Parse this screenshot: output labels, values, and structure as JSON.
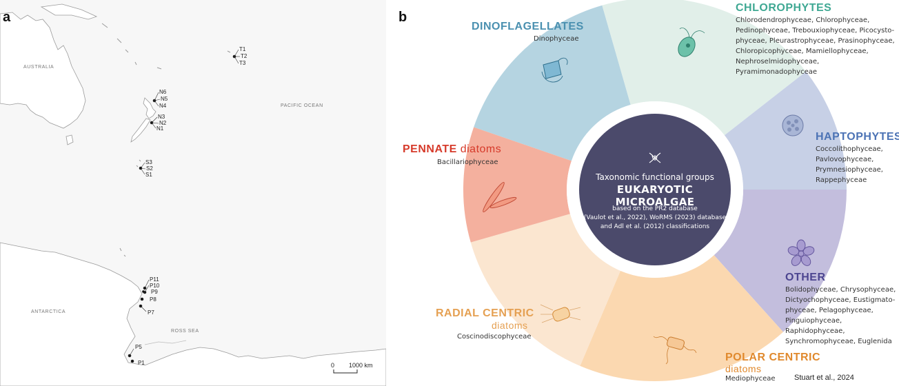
{
  "panel_a": {
    "label": "a",
    "regions": {
      "australia": "AUSTRALIA",
      "pacific": "PACIFIC OCEAN",
      "antarctica": "ANTARCTICA",
      "ross": "ROSS SEA"
    },
    "sites": {
      "t1": "T1",
      "t2": "T2",
      "t3": "T3",
      "n6": "N6",
      "n5": "N5",
      "n4": "N4",
      "n3": "N3",
      "n2": "N2",
      "n1": "N1",
      "s3": "S3",
      "s2": "S2",
      "s1": "S1",
      "p11": "P11",
      "p10": "P10",
      "p9": "P9",
      "p8": "P8",
      "p7": "P7",
      "p5": "P5",
      "p1": "P1"
    },
    "scale": {
      "zero": "0",
      "max": "1000 km"
    }
  },
  "panel_b": {
    "label": "b",
    "center": {
      "line1": "Taxonomic functional groups",
      "line2": "EUKARYOTIC MICROALGAE",
      "line3": "based on the PR2 database",
      "line4": "(Vaulot et al., 2022), WoRMS (2023) database",
      "line5": "and Adl et al. (2012) classifications"
    },
    "groups": {
      "chloro": {
        "title": "CHLOROPHYTES",
        "color": "#3fa893",
        "lines": [
          "Chlorodendrophyceae, Chlorophyceae,",
          "Pedinophyceae, Trebouxiophyceae, Picocysto-",
          "phyceae, Pleurastrophyceae, Prasinophyceae,",
          "Chloropicophyceae, Mamiellophyceae,",
          "Nephroselmidophyceae, Pyramimonadophyceae"
        ]
      },
      "dino": {
        "title": "DINOFLAGELLATES",
        "color": "#4a90b0",
        "lines": [
          "Dinophyceae"
        ]
      },
      "hapto": {
        "title": "HAPTOPHYTES",
        "color": "#4c73b5",
        "lines": [
          "Coccolithophyceae,",
          "Pavlovophyceae,",
          "Prymnesiophyceae,",
          "Rappephyceae"
        ]
      },
      "pennate": {
        "title": "PENNATE",
        "suffix": " diatoms",
        "color": "#d63a2a",
        "lines": [
          "Bacillariophyceae"
        ]
      },
      "other": {
        "title": "OTHER",
        "color": "#4c4590",
        "lines": [
          "Bolidophyceae, Chrysophyceae,",
          "Dictyochophyceae, Eustigmato-",
          "phyceae, Pelagophyceae,",
          "Pinguiophyceae, Raphidophyceae,",
          "Synchromophyceae, Euglenida"
        ]
      },
      "radial": {
        "title": "RADIAL CENTRIC",
        "suffix": "diatoms",
        "color": "#e5a052",
        "lines": [
          "Coscinodiscophyceae"
        ]
      },
      "polar": {
        "title": "POLAR CENTRIC",
        "suffix": "diatoms",
        "color": "#e0892d",
        "lines": [
          "Mediophyceae"
        ]
      }
    },
    "credit": "Stuart et al., 2024",
    "colors": {
      "center": "#4b4a6b",
      "seg_chloro": "#e1efe9",
      "seg_dino": "#b5d4e1",
      "seg_hapto": "#c7d0e6",
      "seg_other": "#c3bedd",
      "seg_polar": "#fbd8b0",
      "seg_radial": "#fbe6d0",
      "seg_pennate": "#f4b09e"
    }
  }
}
